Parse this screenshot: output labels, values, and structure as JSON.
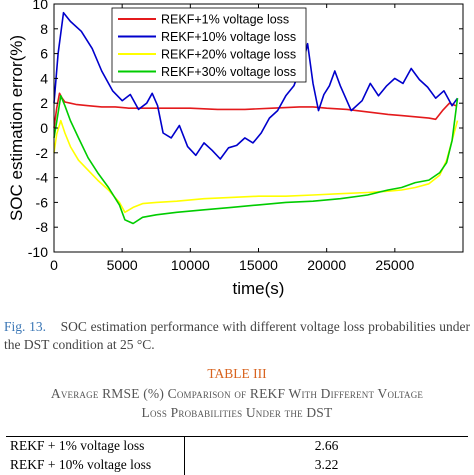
{
  "chart_data": {
    "type": "line",
    "title": "",
    "xlabel": "time(s)",
    "ylabel": "SOC estimation error(%)",
    "xlim": [
      0,
      30000
    ],
    "ylim": [
      -10,
      10
    ],
    "x_ticks": [
      0,
      5000,
      10000,
      15000,
      20000,
      25000
    ],
    "x_tick_labels": [
      "0",
      "5000",
      "10000",
      "15000",
      "20000",
      "25000"
    ],
    "y_ticks": [
      -10,
      -8,
      -6,
      -4,
      -2,
      0,
      2,
      4,
      6,
      8,
      10
    ],
    "y_tick_labels": [
      "-10",
      "-8",
      "-6",
      "-4",
      "-2",
      "0",
      "2",
      "4",
      "6",
      "8",
      "10"
    ],
    "grid": false,
    "legend_position": "top-right",
    "series": [
      {
        "name": "REKF+1% voltage loss",
        "color": "#e41a1c",
        "x": [
          0,
          200,
          400,
          600,
          800,
          1200,
          1600,
          2500,
          3500,
          4500,
          5500,
          6500,
          8000,
          10000,
          12000,
          14000,
          16000,
          18000,
          19000,
          20000,
          21500,
          23000,
          24500,
          25500,
          26500,
          27500,
          28000,
          28500,
          29000,
          29500
        ],
        "y": [
          0,
          1.6,
          2.8,
          2.4,
          2.1,
          2.0,
          1.9,
          1.8,
          1.7,
          1.7,
          1.6,
          1.6,
          1.6,
          1.6,
          1.5,
          1.5,
          1.6,
          1.7,
          1.7,
          1.6,
          1.5,
          1.3,
          1.1,
          1.0,
          0.9,
          0.8,
          0.7,
          1.4,
          2.0,
          1.8
        ]
      },
      {
        "name": "REKF+10% voltage loss",
        "color": "#0000cc",
        "x": [
          0,
          300,
          700,
          1200,
          2000,
          2800,
          3500,
          4300,
          5000,
          5600,
          6200,
          6800,
          7200,
          7600,
          8000,
          8600,
          9200,
          9800,
          10400,
          11000,
          11600,
          12200,
          12800,
          13400,
          14000,
          14600,
          15200,
          15800,
          16400,
          17000,
          17600,
          18000,
          18300,
          18600,
          19000,
          19400,
          19800,
          20200,
          20600,
          21000,
          21800,
          22600,
          23200,
          23800,
          24400,
          25000,
          25600,
          26200,
          26800,
          27400,
          28000,
          28600,
          29200,
          29600
        ],
        "y": [
          2.0,
          6.0,
          9.3,
          8.6,
          7.8,
          6.4,
          4.6,
          3.0,
          2.2,
          2.7,
          1.5,
          2.0,
          2.8,
          1.8,
          -0.4,
          -0.8,
          0.2,
          -1.5,
          -2.2,
          -1.2,
          -1.8,
          -2.5,
          -1.6,
          -1.4,
          -0.8,
          -1.2,
          -0.4,
          0.8,
          1.4,
          2.6,
          3.4,
          4.6,
          5.4,
          6.8,
          3.6,
          1.4,
          2.7,
          3.4,
          4.6,
          3.4,
          1.4,
          2.2,
          3.6,
          2.6,
          3.4,
          4.0,
          3.6,
          4.8,
          3.9,
          3.3,
          2.4,
          3.0,
          1.8,
          2.4
        ]
      },
      {
        "name": "REKF+20% voltage loss",
        "color": "#ffff00",
        "x": [
          0,
          200,
          500,
          800,
          1200,
          1800,
          2500,
          3200,
          4000,
          4800,
          5200,
          5800,
          6500,
          7500,
          9000,
          11000,
          13000,
          15000,
          17000,
          19000,
          21000,
          23000,
          24500,
          25500,
          26500,
          27500,
          28300,
          28800,
          29200,
          29600
        ],
        "y": [
          -2.0,
          -0.5,
          0.6,
          -0.4,
          -1.5,
          -2.6,
          -3.4,
          -4.2,
          -5.0,
          -6.0,
          -6.8,
          -6.4,
          -6.1,
          -6.0,
          -5.9,
          -5.7,
          -5.6,
          -5.5,
          -5.5,
          -5.4,
          -5.3,
          -5.2,
          -5.1,
          -5.0,
          -4.8,
          -4.5,
          -3.8,
          -2.6,
          -1.0,
          0.6
        ]
      },
      {
        "name": "REKF+30% voltage loss",
        "color": "#00cc00",
        "x": [
          0,
          200,
          500,
          800,
          1200,
          1800,
          2500,
          3200,
          4000,
          4800,
          5200,
          5800,
          6500,
          7500,
          9000,
          11000,
          13000,
          15000,
          17000,
          19000,
          21000,
          23000,
          24500,
          25500,
          26500,
          27500,
          28300,
          28800,
          29200,
          29600
        ],
        "y": [
          -0.8,
          0.5,
          2.6,
          1.8,
          0.6,
          -0.8,
          -2.4,
          -3.6,
          -4.8,
          -6.2,
          -7.4,
          -7.7,
          -7.2,
          -7.0,
          -6.8,
          -6.6,
          -6.4,
          -6.2,
          -6.0,
          -5.9,
          -5.7,
          -5.4,
          -5.0,
          -4.8,
          -4.4,
          -4.2,
          -3.6,
          -2.8,
          -1.0,
          2.4
        ]
      }
    ]
  },
  "caption": {
    "fig_num": "Fig. 13.",
    "text": "SOC estimation performance with different voltage loss probabilities under the DST condition at 25 °C."
  },
  "table": {
    "label": "TABLE III",
    "title_line1": "Average RMSE (%) Comparison of REKF With Different Voltage",
    "title_line2": "Loss Probabilities Under the DST",
    "rows": [
      {
        "method": "REKF + 1% voltage loss",
        "value": "2.66"
      },
      {
        "method": "REKF + 10% voltage loss",
        "value": "3.22"
      }
    ]
  }
}
